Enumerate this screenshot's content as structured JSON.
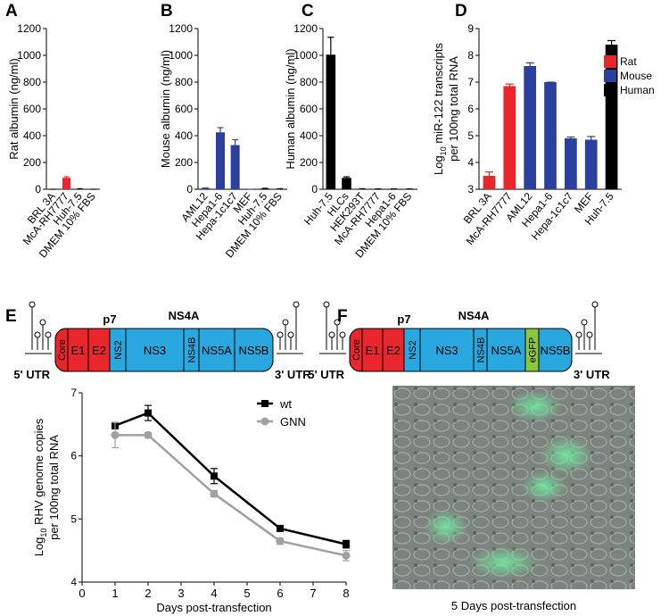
{
  "panels": [
    "A",
    "B",
    "C",
    "D",
    "E",
    "F"
  ],
  "chart_data": [
    {
      "type": "bar",
      "y_label": "Rat albumin (ng/ml)",
      "categories": [
        "BRL 3A",
        "McA-RH7777",
        "Huh-7.5",
        "DMEM 10% FBS"
      ],
      "values": [
        0,
        85,
        3,
        0
      ],
      "errors": [
        0,
        8,
        1,
        0
      ],
      "colors": [
        "#000000",
        "#e8262b",
        "#000000",
        "#000000"
      ],
      "ylim": [
        0,
        1200
      ],
      "yticks": [
        0,
        200,
        400,
        600,
        800,
        1000,
        1200
      ]
    },
    {
      "type": "bar",
      "y_label": "Mouse albumin (ng/ml)",
      "categories": [
        "AML12",
        "Hepa1-6",
        "Hepa-1c1c7",
        "MEF",
        "Huh-7.5",
        "DMEM 10% FBS"
      ],
      "values": [
        8,
        425,
        330,
        0,
        5,
        3
      ],
      "errors": [
        2,
        35,
        40,
        0,
        2,
        1
      ],
      "colors": [
        "#2b3f9e",
        "#2b3f9e",
        "#2b3f9e",
        "#2b3f9e",
        "#000000",
        "#000000"
      ],
      "ylim": [
        0,
        1200
      ],
      "yticks": [
        0,
        200,
        400,
        600,
        800,
        1000,
        1200
      ]
    },
    {
      "type": "bar",
      "y_label": "Human albumin (ng/ml)",
      "categories": [
        "Huh-7.5",
        "HLCs",
        "HEK293T",
        "McA-RH7777",
        "Hepa1-6",
        "DMEM 10% FBS"
      ],
      "values": [
        1005,
        85,
        3,
        2,
        2,
        2
      ],
      "errors": [
        130,
        8,
        1,
        1,
        1,
        1
      ],
      "colors": [
        "#000000",
        "#000000",
        "#000000",
        "#000000",
        "#000000",
        "#000000"
      ],
      "ylim": [
        0,
        1200
      ],
      "yticks": [
        0,
        200,
        400,
        600,
        800,
        1000,
        1200
      ]
    },
    {
      "type": "bar",
      "y_label": {
        "base": "Log",
        "sub": "10",
        "rest": " miR-122 transcripts",
        "line2": "per 100ng total RNA"
      },
      "categories": [
        "BRL 3A",
        "McA-RH7777",
        "AML12",
        "Hepa1-6",
        "Hepa-1c1c7",
        "MEF",
        "Huh-7.5"
      ],
      "values": [
        3.5,
        6.85,
        7.6,
        7.0,
        4.9,
        4.85,
        8.4
      ],
      "errors": [
        0.15,
        0.08,
        0.12,
        0,
        0.05,
        0.12,
        0.15
      ],
      "colors": [
        "#e8262b",
        "#e8262b",
        "#2b3f9e",
        "#2b3f9e",
        "#2b3f9e",
        "#2b3f9e",
        "#000000"
      ],
      "legend": [
        {
          "name": "Rat",
          "color": "#e8262b"
        },
        {
          "name": "Mouse",
          "color": "#2b3f9e"
        },
        {
          "name": "Human",
          "color": "#000000"
        }
      ],
      "legend_corner": "upper right",
      "ylim": [
        3,
        9
      ],
      "yticks": [
        3,
        4,
        5,
        6,
        7,
        8,
        9
      ]
    },
    {
      "type": "line",
      "x_label": "Days post-transfection",
      "y_label": {
        "base": "Log",
        "sub": "10",
        "rest": " RHV genome copies",
        "line2": "per 100ng total RNA"
      },
      "x": [
        1,
        2,
        4,
        6,
        8
      ],
      "series": [
        {
          "name": "wt",
          "color": "#000000",
          "marker": "square",
          "values": [
            6.48,
            6.68,
            5.68,
            4.85,
            4.6
          ],
          "errors": [
            0.05,
            0.12,
            0.12,
            0.04,
            0.06
          ]
        },
        {
          "name": "GNN",
          "color": "#a0a0a0",
          "marker": "circle",
          "values": [
            6.33,
            6.33,
            5.4,
            4.65,
            4.42
          ],
          "errors": [
            0.2,
            0.04,
            0.05,
            0.05,
            0.08
          ]
        }
      ],
      "legend_corner": "upper right",
      "xlim": [
        0,
        8
      ],
      "xticks": [
        0,
        1,
        2,
        3,
        4,
        5,
        6,
        7,
        8
      ],
      "ylim": [
        4,
        7
      ],
      "yticks": [
        4,
        5,
        6,
        7
      ]
    }
  ],
  "genome_e": {
    "utr5": "5' UTR",
    "utr3": "3' UTR",
    "above": [
      "p7",
      "NS4A"
    ],
    "segments": [
      {
        "label": "Core",
        "color": "#e8262b"
      },
      {
        "label": "E1",
        "color": "#e8262b"
      },
      {
        "label": "E2",
        "color": "#e8262b"
      },
      {
        "label": "NS2",
        "color": "#29a8e0"
      },
      {
        "label": "NS3",
        "color": "#29a8e0"
      },
      {
        "label": "NS4B",
        "color": "#29a8e0"
      },
      {
        "label": "NS5A",
        "color": "#29a8e0"
      },
      {
        "label": "NS5B",
        "color": "#29a8e0"
      }
    ]
  },
  "genome_f": {
    "utr5": "5' UTR",
    "utr3": "3' UTR",
    "above": [
      "p7",
      "NS4A"
    ],
    "segments": [
      {
        "label": "Core",
        "color": "#e8262b"
      },
      {
        "label": "E1",
        "color": "#e8262b"
      },
      {
        "label": "E2",
        "color": "#e8262b"
      },
      {
        "label": "NS2",
        "color": "#29a8e0"
      },
      {
        "label": "NS3",
        "color": "#29a8e0"
      },
      {
        "label": "NS4B",
        "color": "#29a8e0"
      },
      {
        "label": "NS5A",
        "color": "#29a8e0"
      },
      {
        "label": "eGFP",
        "color": "#8cc63f"
      },
      {
        "label": "NS5B",
        "color": "#29a8e0"
      }
    ]
  },
  "image_caption": "5 Days post-transfection"
}
